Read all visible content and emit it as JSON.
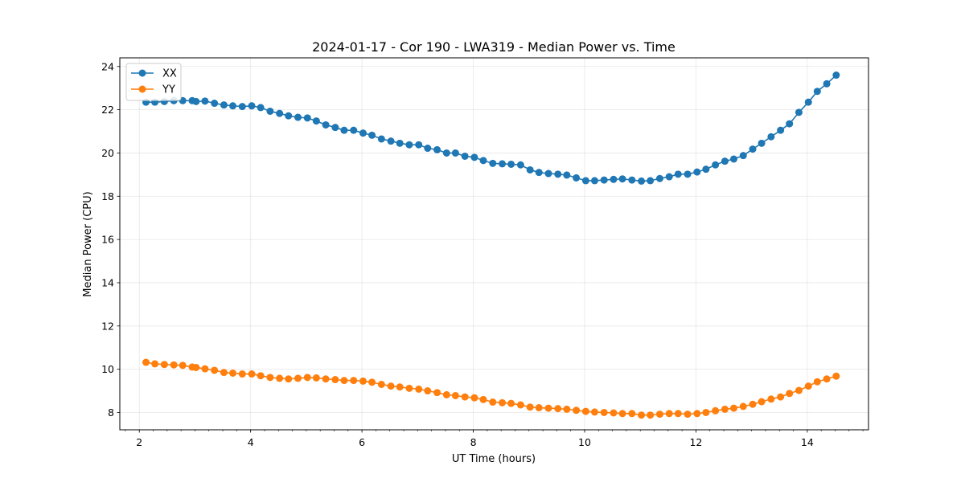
{
  "chart_data": {
    "type": "line",
    "title": "2024-01-17 - Cor 190 - LWA319 - Median Power vs. Time",
    "xlabel": "UT Time (hours)",
    "ylabel": "Median Power (CPU)",
    "xlim": [
      1.65,
      15.1
    ],
    "ylim": [
      7.2,
      24.4
    ],
    "xticks": [
      2,
      4,
      6,
      8,
      10,
      12,
      14
    ],
    "yticks": [
      8,
      10,
      12,
      14,
      16,
      18,
      20,
      22,
      24
    ],
    "xtick_labels": [
      "2",
      "4",
      "6",
      "8",
      "10",
      "12",
      "14"
    ],
    "ytick_labels": [
      "8",
      "10",
      "12",
      "14",
      "16",
      "18",
      "20",
      "22",
      "24"
    ],
    "grid": true,
    "legend_position": "top-left",
    "series": [
      {
        "name": "XX",
        "color": "#1f77b4",
        "x": [
          2.12,
          2.28,
          2.45,
          2.62,
          2.78,
          2.95,
          3.02,
          3.18,
          3.35,
          3.52,
          3.68,
          3.85,
          4.02,
          4.18,
          4.35,
          4.52,
          4.68,
          4.85,
          5.02,
          5.18,
          5.35,
          5.52,
          5.68,
          5.85,
          6.02,
          6.18,
          6.35,
          6.52,
          6.68,
          6.85,
          7.02,
          7.18,
          7.35,
          7.52,
          7.68,
          7.85,
          8.02,
          8.18,
          8.35,
          8.52,
          8.68,
          8.85,
          9.02,
          9.18,
          9.35,
          9.52,
          9.68,
          9.85,
          10.02,
          10.18,
          10.35,
          10.52,
          10.68,
          10.85,
          11.02,
          11.18,
          11.35,
          11.52,
          11.68,
          11.85,
          12.02,
          12.18,
          12.35,
          12.52,
          12.68,
          12.85,
          13.02,
          13.18,
          13.35,
          13.52,
          13.68,
          13.85,
          14.02,
          14.18,
          14.35,
          14.52
        ],
        "y": [
          22.35,
          22.35,
          22.38,
          22.42,
          22.42,
          22.42,
          22.38,
          22.4,
          22.3,
          22.22,
          22.18,
          22.15,
          22.18,
          22.1,
          21.93,
          21.83,
          21.72,
          21.65,
          21.62,
          21.48,
          21.3,
          21.18,
          21.05,
          21.05,
          20.92,
          20.82,
          20.65,
          20.55,
          20.45,
          20.38,
          20.38,
          20.22,
          20.15,
          20.0,
          20.0,
          19.85,
          19.8,
          19.65,
          19.52,
          19.5,
          19.48,
          19.45,
          19.22,
          19.1,
          19.05,
          19.02,
          18.98,
          18.85,
          18.72,
          18.72,
          18.75,
          18.78,
          18.8,
          18.75,
          18.7,
          18.72,
          18.82,
          18.9,
          19.02,
          19.02,
          19.12,
          19.25,
          19.45,
          19.62,
          19.72,
          19.88,
          20.18,
          20.45,
          20.75,
          21.05,
          21.35,
          21.88,
          22.35,
          22.85,
          23.2,
          23.6
        ]
      },
      {
        "name": "YY",
        "color": "#ff7f0e",
        "x": [
          2.12,
          2.28,
          2.45,
          2.62,
          2.78,
          2.95,
          3.02,
          3.18,
          3.35,
          3.52,
          3.68,
          3.85,
          4.02,
          4.18,
          4.35,
          4.52,
          4.68,
          4.85,
          5.02,
          5.18,
          5.35,
          5.52,
          5.68,
          5.85,
          6.02,
          6.18,
          6.35,
          6.52,
          6.68,
          6.85,
          7.02,
          7.18,
          7.35,
          7.52,
          7.68,
          7.85,
          8.02,
          8.18,
          8.35,
          8.52,
          8.68,
          8.85,
          9.02,
          9.18,
          9.35,
          9.52,
          9.68,
          9.85,
          10.02,
          10.18,
          10.35,
          10.52,
          10.68,
          10.85,
          11.02,
          11.18,
          11.35,
          11.52,
          11.68,
          11.85,
          12.02,
          12.18,
          12.35,
          12.52,
          12.68,
          12.85,
          13.02,
          13.18,
          13.35,
          13.52,
          13.68,
          13.85,
          14.02,
          14.18,
          14.35,
          14.52
        ],
        "y": [
          10.32,
          10.25,
          10.22,
          10.2,
          10.18,
          10.1,
          10.08,
          10.02,
          9.95,
          9.85,
          9.82,
          9.78,
          9.78,
          9.7,
          9.62,
          9.58,
          9.55,
          9.58,
          9.62,
          9.6,
          9.55,
          9.52,
          9.48,
          9.48,
          9.45,
          9.4,
          9.3,
          9.22,
          9.18,
          9.12,
          9.08,
          9.0,
          8.92,
          8.82,
          8.78,
          8.72,
          8.68,
          8.6,
          8.48,
          8.45,
          8.42,
          8.35,
          8.25,
          8.22,
          8.2,
          8.18,
          8.15,
          8.1,
          8.05,
          8.02,
          8.0,
          7.98,
          7.95,
          7.95,
          7.88,
          7.88,
          7.92,
          7.95,
          7.95,
          7.92,
          7.95,
          8.0,
          8.08,
          8.15,
          8.2,
          8.28,
          8.38,
          8.5,
          8.62,
          8.72,
          8.88,
          9.02,
          9.22,
          9.42,
          9.55,
          9.68
        ]
      }
    ]
  }
}
